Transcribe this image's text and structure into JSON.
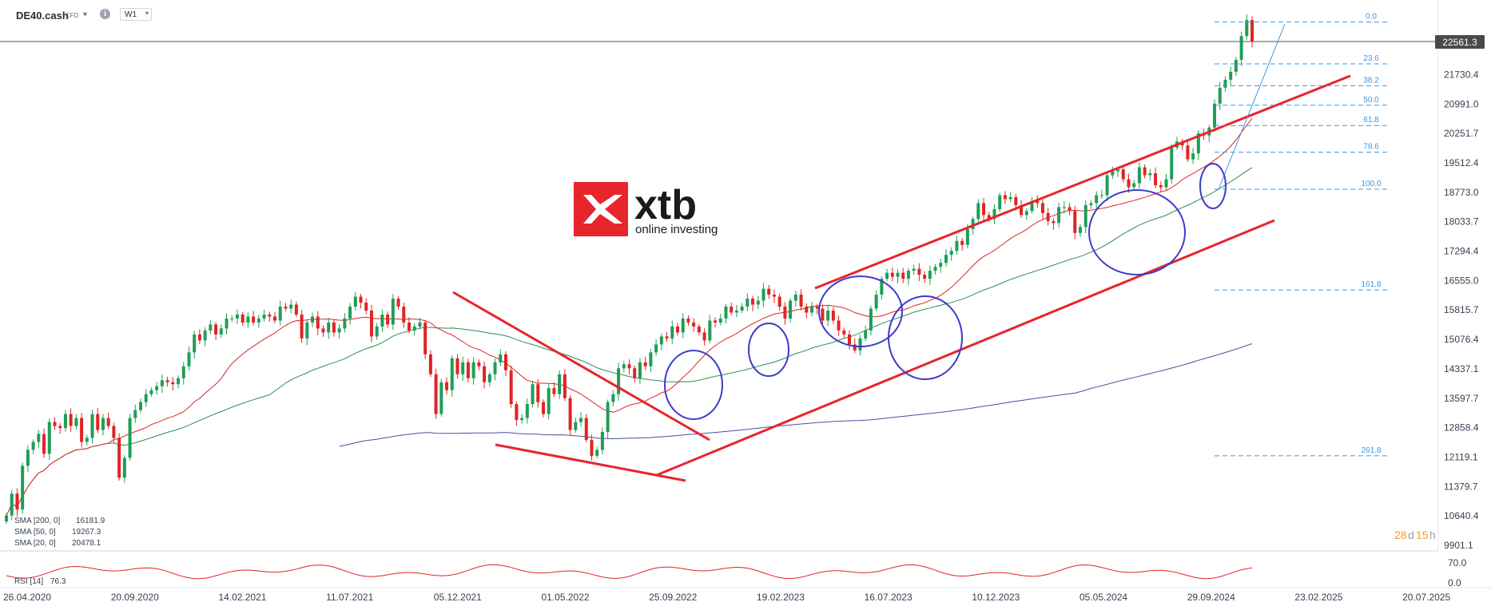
{
  "header": {
    "symbol": "DE40.cash",
    "symbol_type": "CFD",
    "info_glyph": "i",
    "timeframe": "W1"
  },
  "logo": {
    "brand": "xtb",
    "tagline": "online investing",
    "color": "#e8242c"
  },
  "indicators_legend": [
    {
      "label": "SMA [200, 0]",
      "value": "16181.9",
      "color": "#4a4e9a"
    },
    {
      "label": "SMA [50, 0]",
      "value": "19267.3",
      "color": "#2e8b57"
    },
    {
      "label": "SMA [20, 0]",
      "value": "20478.1",
      "color": "#e02424"
    }
  ],
  "countdown": {
    "days": "28",
    "d": "d",
    "hours": "15",
    "h": "h"
  },
  "rsi": {
    "label": "RSI [14]",
    "value": "76.3",
    "ticks": [
      "70.0",
      "0.0"
    ]
  },
  "chart_data": {
    "type": "candlestick",
    "instrument": "DE40.cash",
    "timeframe": "W1",
    "current_price": 22561.3,
    "current_price_label": "22561.3",
    "y_axis_ticks": [
      "21730.4",
      "20991.0",
      "20251.7",
      "19512.4",
      "18773.0",
      "18033.7",
      "17294.4",
      "16555.0",
      "15815.7",
      "15076.4",
      "14337.1",
      "13597.7",
      "12858.4",
      "12119.1",
      "11379.7",
      "10640.4",
      "9901.1"
    ],
    "x_axis_ticks": [
      "26.04.2020",
      "20.09.2020",
      "14.02.2021",
      "11.07.2021",
      "05.12.2021",
      "01.05.2022",
      "25.09.2022",
      "19.02.2023",
      "16.07.2023",
      "10.12.2023",
      "05.05.2024",
      "29.09.2024",
      "23.02.2025",
      "20.07.2025"
    ],
    "ylim": [
      9750,
      23200
    ],
    "weekly_closes": [
      10650,
      11200,
      10800,
      11900,
      12300,
      12500,
      12700,
      12200,
      13000,
      12900,
      12850,
      13200,
      12900,
      13100,
      12500,
      12600,
      13200,
      12800,
      13100,
      12900,
      12600,
      11600,
      12100,
      13100,
      13300,
      13500,
      13700,
      13800,
      13900,
      14050,
      14000,
      13950,
      14100,
      14400,
      14750,
      15200,
      15050,
      15300,
      15450,
      15200,
      15350,
      15600,
      15600,
      15700,
      15500,
      15650,
      15500,
      15600,
      15700,
      15650,
      15550,
      15900,
      15850,
      15950,
      15700,
      15100,
      15500,
      15650,
      15350,
      15250,
      15500,
      15250,
      15350,
      15600,
      15900,
      16150,
      16000,
      15800,
      15150,
      15400,
      15700,
      15450,
      16100,
      15900,
      15500,
      15300,
      15400,
      15500,
      14700,
      14200,
      13200,
      14000,
      13800,
      14600,
      14200,
      14500,
      14100,
      14500,
      14400,
      14000,
      14200,
      14500,
      14700,
      14300,
      13450,
      13050,
      13100,
      13450,
      13950,
      13500,
      13200,
      13850,
      13700,
      14200,
      13600,
      12800,
      13000,
      13100,
      12550,
      12150,
      12300,
      12750,
      13500,
      13700,
      14350,
      14450,
      14350,
      14100,
      14500,
      14400,
      14750,
      14950,
      15150,
      15100,
      15400,
      15250,
      15600,
      15500,
      15400,
      15250,
      15050,
      15550,
      15500,
      15600,
      15900,
      15750,
      15800,
      15900,
      16100,
      15950,
      16050,
      16350,
      16200,
      16150,
      15900,
      15600,
      16050,
      16200,
      15900,
      15750,
      15900,
      15850,
      15550,
      15800,
      15550,
      15300,
      15200,
      14950,
      14800,
      15100,
      15300,
      15850,
      16200,
      16600,
      16750,
      16650,
      16750,
      16600,
      16800,
      16850,
      16700,
      16600,
      16800,
      16900,
      17000,
      17200,
      17300,
      17550,
      17450,
      17850,
      18100,
      18500,
      18200,
      18100,
      18350,
      18700,
      18600,
      18650,
      18450,
      18200,
      18300,
      18550,
      18500,
      18250,
      18050,
      18000,
      18400,
      18400,
      18300,
      17750,
      17900,
      18450,
      18500,
      18700,
      18700,
      19200,
      19300,
      19350,
      19100,
      18900,
      19000,
      19400,
      19200,
      19250,
      18950,
      18900,
      19100,
      19900,
      20050,
      19950,
      19600,
      19750,
      20250,
      20200,
      20400,
      21000,
      21400,
      21600,
      21800,
      22100,
      22700,
      23100,
      22561
    ],
    "sma": [
      {
        "name": "SMA [200, 0]",
        "value": 16181.9,
        "color": "#4a4e9a"
      },
      {
        "name": "SMA [50, 0]",
        "value": 19267.3,
        "color": "#2e8b57"
      },
      {
        "name": "SMA [20, 0]",
        "value": 20478.1,
        "color": "#e02424"
      }
    ],
    "fibonacci": {
      "color": "#3c96e6",
      "levels": [
        {
          "label": "0.0",
          "price": 23050
        },
        {
          "label": "23.6",
          "price": 22000
        },
        {
          "label": "38.2",
          "price": 21450
        },
        {
          "label": "50.0",
          "price": 20960
        },
        {
          "label": "61.8",
          "price": 20450
        },
        {
          "label": "78.6",
          "price": 19780
        },
        {
          "label": "100.0",
          "price": 18850
        },
        {
          "label": "161.8",
          "price": 16320
        },
        {
          "label": "261.8",
          "price": 12150
        }
      ]
    }
  }
}
